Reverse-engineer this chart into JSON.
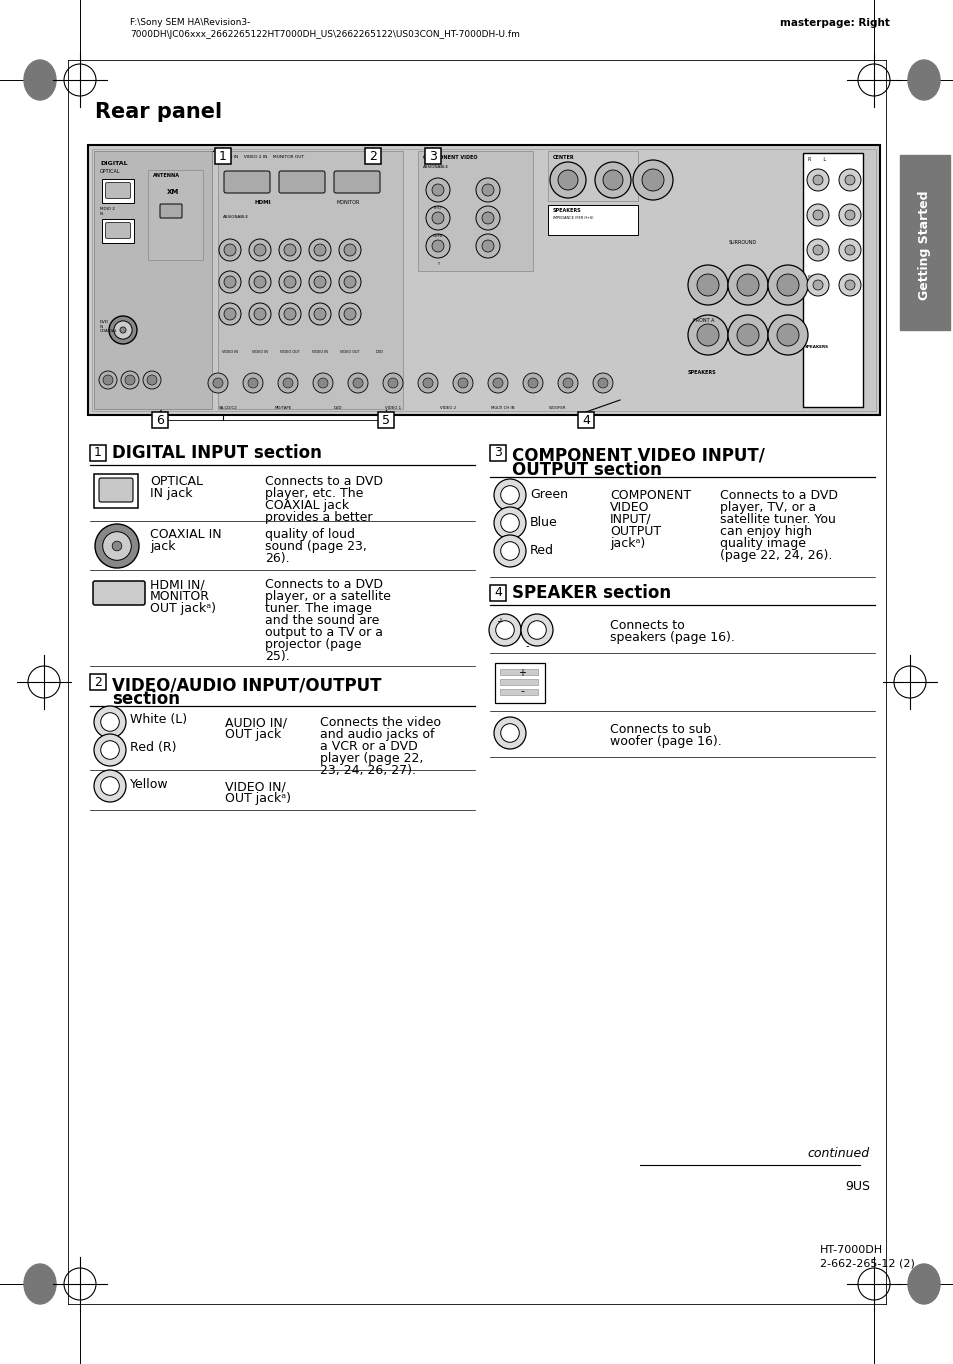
{
  "page_bg": "#ffffff",
  "header_text_left": "F:\\Sony SEM HA\\Revision3-\n7000DH\\JC06xxx_2662265122HT7000DH_US\\2662265122\\US03CON_HT-7000DH-U.fm",
  "header_text_right": "masterpage: Right",
  "page_title": "Rear panel",
  "sidebar_color": "#6e6e6e",
  "sidebar_text": "Getting Started",
  "footer_continued": "continued",
  "footer_page": "9US",
  "footer_model": "HT-7000DH\n2-662-265-12 (2)"
}
